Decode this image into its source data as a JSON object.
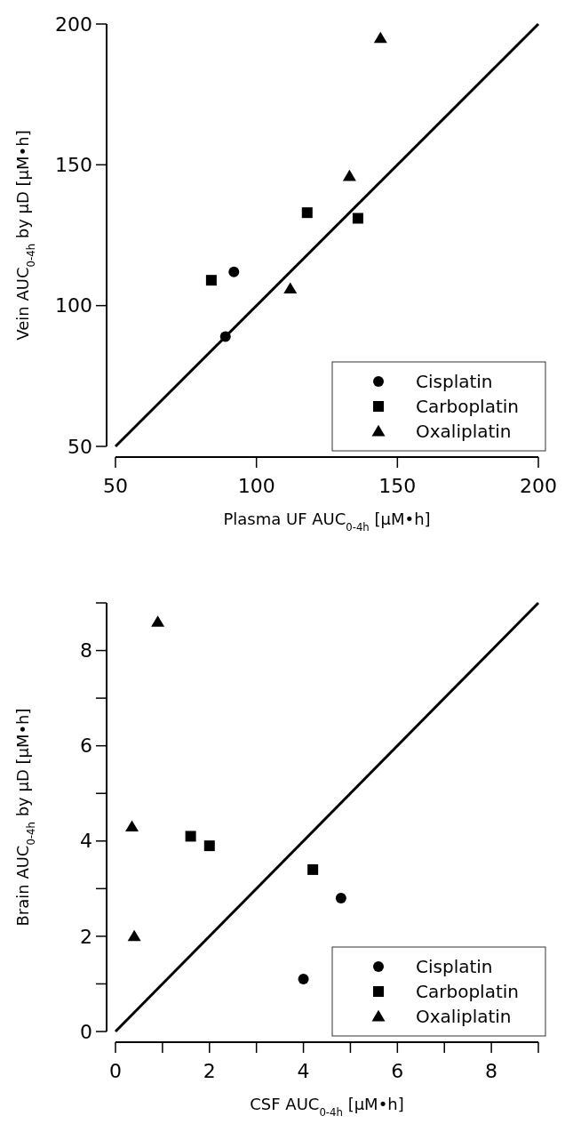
{
  "chart_data": [
    {
      "type": "scatter",
      "xlabel": "Plasma UF AUC$_{0-4h}$ [μM•h]",
      "ylabel": "Vein AUC$_{0-4h}$ by μD [μM•h]",
      "xlim": [
        50,
        200
      ],
      "ylim": [
        50,
        200
      ],
      "xticks": [
        50,
        100,
        150,
        200
      ],
      "yticks": [
        50,
        100,
        150,
        200
      ],
      "legend": "bottom right",
      "grid": false,
      "series": [
        {
          "name": "Cisplatin",
          "color": "#000000",
          "marker": "circle",
          "x": [
            89,
            92
          ],
          "values": [
            89,
            112
          ]
        },
        {
          "name": "Carboplatin",
          "color": "#000000",
          "marker": "square",
          "x": [
            84,
            118,
            136
          ],
          "values": [
            109,
            133,
            131
          ]
        },
        {
          "name": "Oxaliplatin",
          "color": "#000000",
          "marker": "triangle",
          "x": [
            112,
            133,
            144
          ],
          "values": [
            106,
            146,
            195
          ]
        },
        {
          "type": "line",
          "color": "#000000",
          "marker": "none",
          "line_style": "solid",
          "x": [
            50,
            200
          ],
          "values": [
            50,
            200
          ]
        }
      ]
    },
    {
      "type": "scatter",
      "xlabel": "CSF AUC$_{0-4h}$ [μM•h]",
      "ylabel": "Brain AUC$_{0-4h}$ by μD [μM•h]",
      "xlim": [
        0,
        9
      ],
      "ylim": [
        0,
        9
      ],
      "xticks": [
        0,
        {
          "value": 1,
          "label": null
        },
        2,
        {
          "value": 3,
          "label": null
        },
        4,
        {
          "value": 5,
          "label": null
        },
        6,
        {
          "value": 7,
          "label": null
        },
        8,
        {
          "value": 9,
          "label": null
        }
      ],
      "yticks": [
        0,
        {
          "value": 1,
          "label": null
        },
        2,
        {
          "value": 3,
          "label": null
        },
        4,
        {
          "value": 5,
          "label": null
        },
        6,
        {
          "value": 7,
          "label": null
        },
        8,
        {
          "value": 9,
          "label": null
        }
      ],
      "legend": "bottom right",
      "grid": false,
      "series": [
        {
          "name": "Cisplatin",
          "color": "#000000",
          "marker": "circle",
          "x": [
            4.0,
            4.8
          ],
          "values": [
            1.1,
            2.8
          ]
        },
        {
          "name": "Carboplatin",
          "color": "#000000",
          "marker": "square",
          "x": [
            1.6,
            2.0,
            4.2
          ],
          "values": [
            4.1,
            3.9,
            3.4
          ]
        },
        {
          "name": "Oxaliplatin",
          "color": "#000000",
          "marker": "triangle",
          "x": [
            0.35,
            0.4,
            0.9
          ],
          "values": [
            4.3,
            2.0,
            8.6
          ]
        },
        {
          "type": "line",
          "color": "#000000",
          "marker": "none",
          "line_style": "solid",
          "x": [
            0,
            9
          ],
          "values": [
            0,
            9
          ]
        }
      ]
    }
  ]
}
